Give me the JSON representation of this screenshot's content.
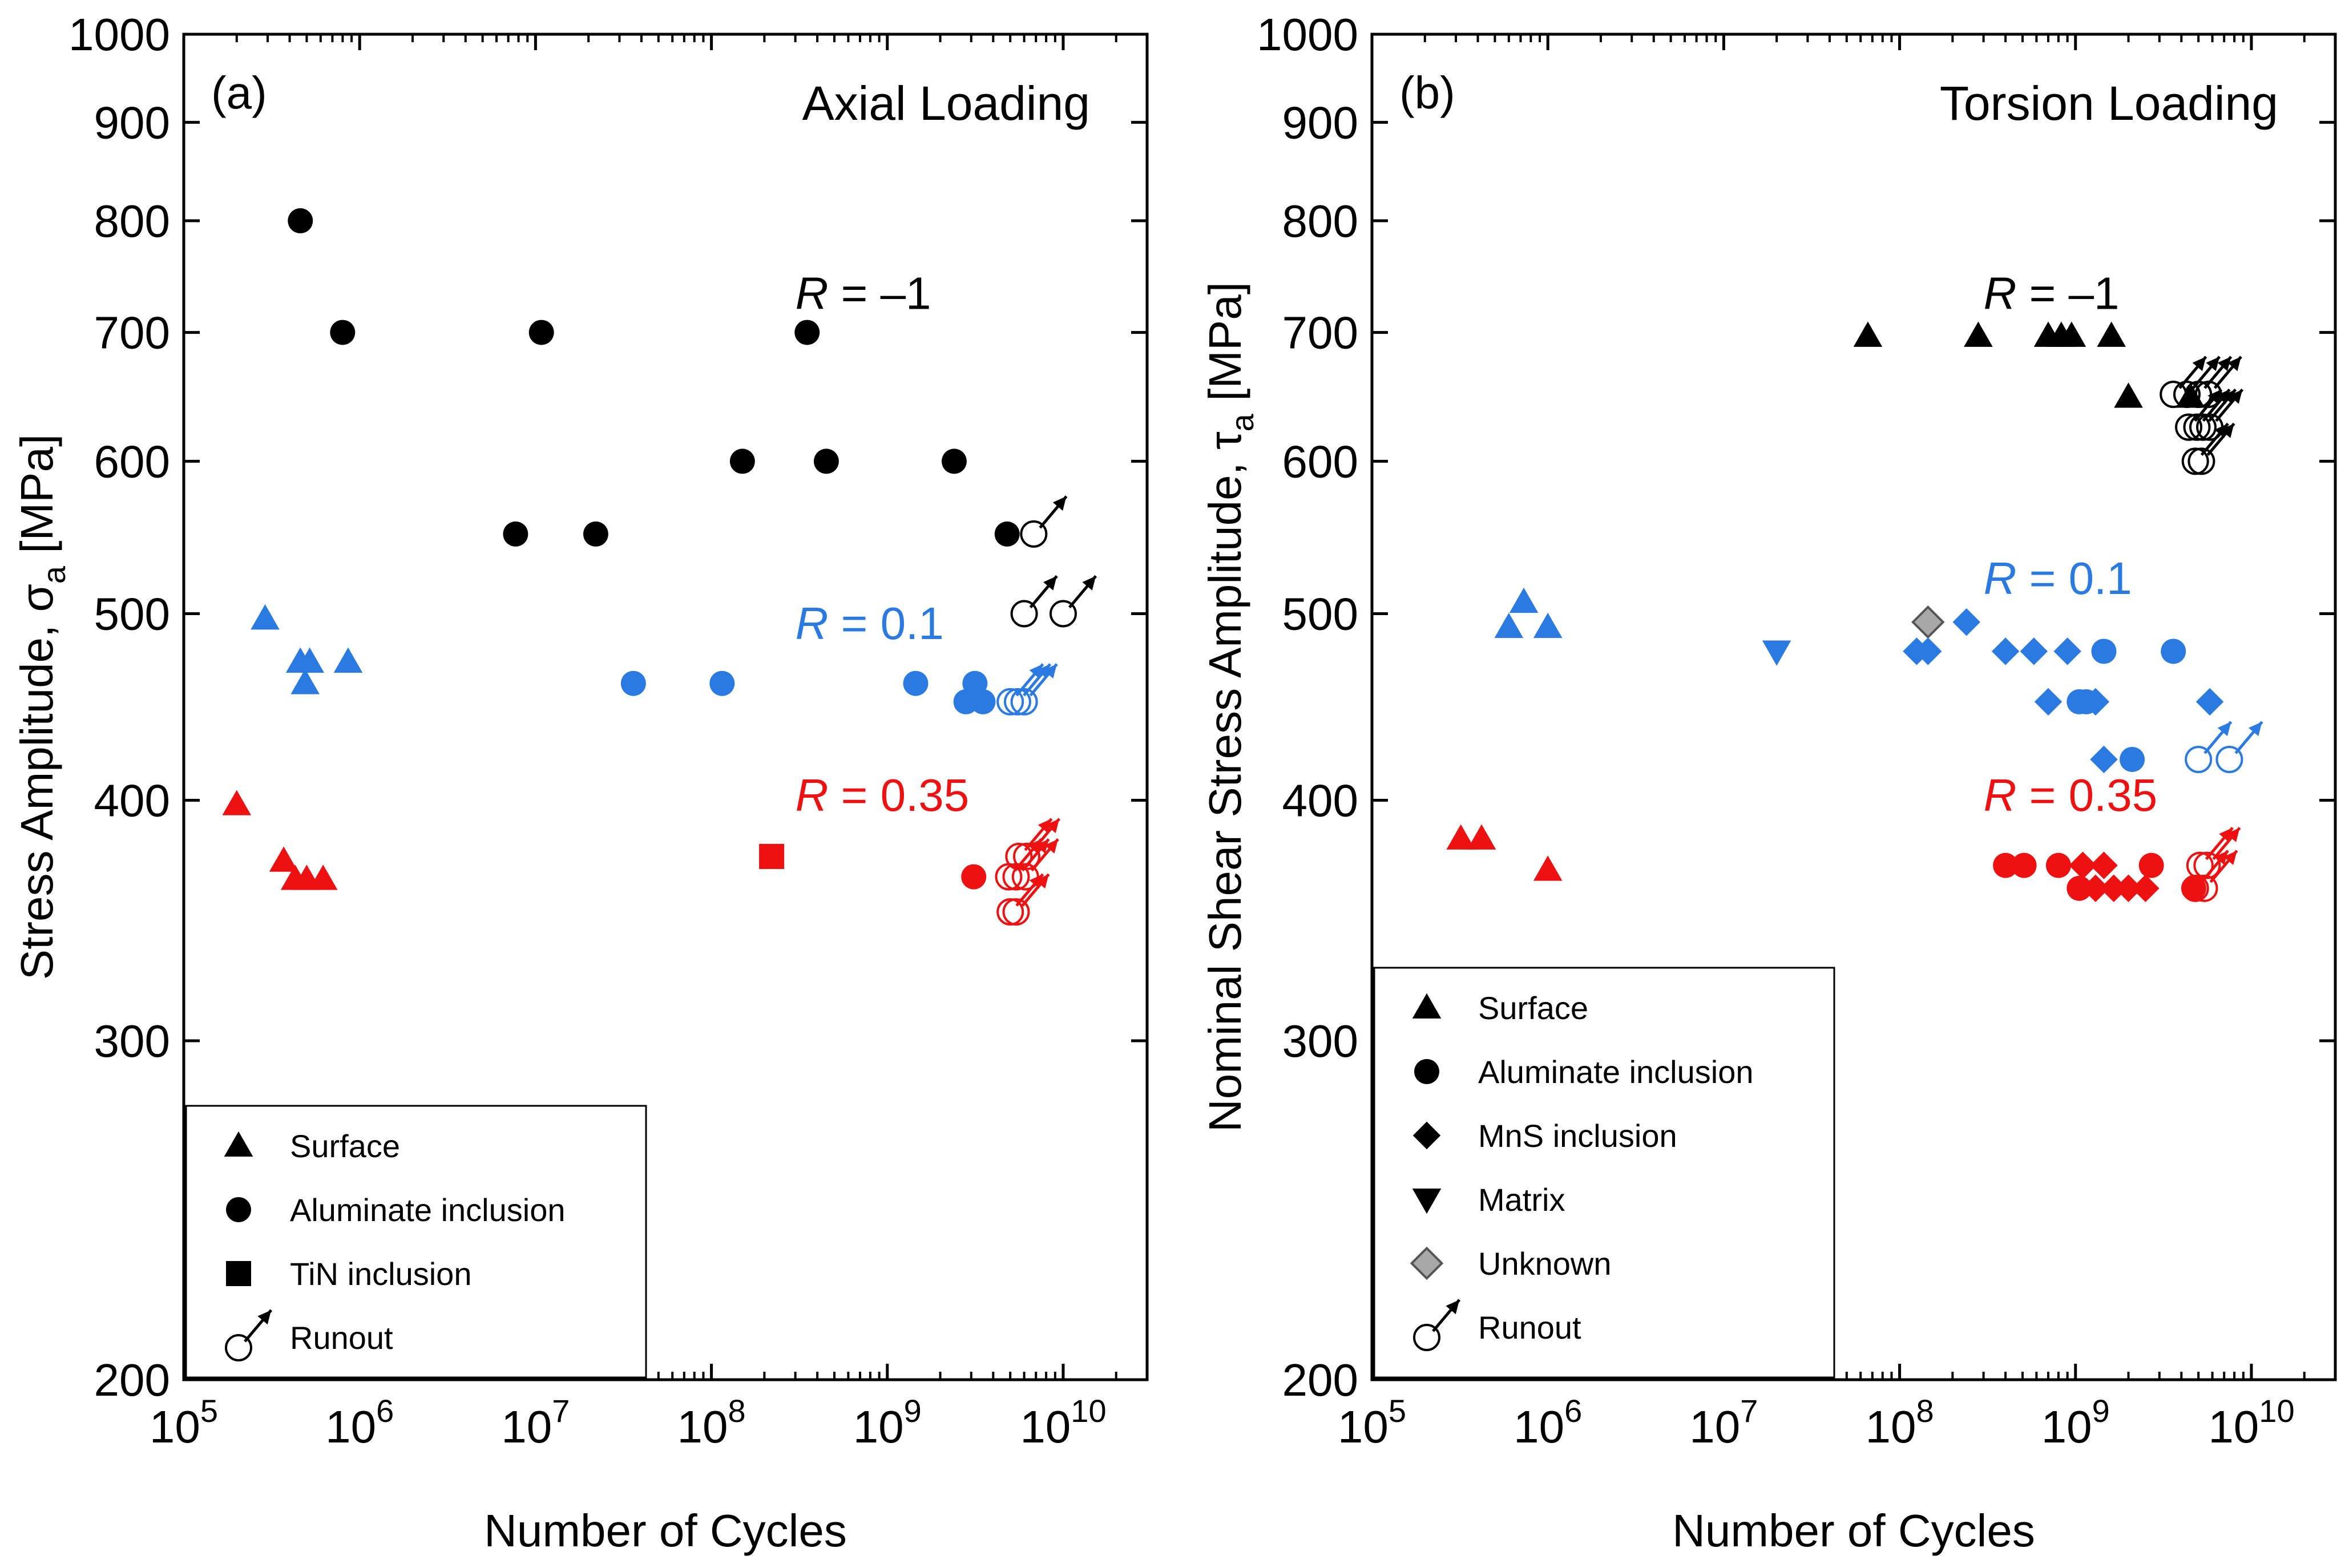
{
  "chart_data": [
    {
      "type": "scatter",
      "panel_label": "(a)",
      "title": "Axial Loading",
      "xlabel": "Number of Cycles",
      "ylabel": "Stress Amplitude, σ",
      "ylabel_sub": "a",
      "ylabel_unit": " [MPa]",
      "xscale": "log",
      "yscale": "log",
      "xlim": [
        100000,
        30000000000
      ],
      "ylim": [
        200,
        1000
      ],
      "x_ticks": [
        {
          "value": 100000,
          "base": "10",
          "exp": "5"
        },
        {
          "value": 1000000,
          "base": "10",
          "exp": "6"
        },
        {
          "value": 10000000,
          "base": "10",
          "exp": "7"
        },
        {
          "value": 100000000,
          "base": "10",
          "exp": "8"
        },
        {
          "value": 1000000000,
          "base": "10",
          "exp": "9"
        },
        {
          "value": 10000000000,
          "base": "10",
          "exp": "10"
        }
      ],
      "y_ticks": [
        {
          "value": 200,
          "label": "200"
        },
        {
          "value": 300,
          "label": "300"
        },
        {
          "value": 400,
          "label": "400"
        },
        {
          "value": 500,
          "label": "500"
        },
        {
          "value": 600,
          "label": "600"
        },
        {
          "value": 700,
          "label": "700"
        },
        {
          "value": 800,
          "label": "800"
        },
        {
          "value": 900,
          "label": "900"
        },
        {
          "value": 1000,
          "label": "1000"
        }
      ],
      "grid": false,
      "legend_position": "bottom-left",
      "legend": [
        {
          "label": "Surface",
          "marker": "triangle"
        },
        {
          "label": "Aluminate inclusion",
          "marker": "circle"
        },
        {
          "label": "TiN inclusion",
          "marker": "square"
        },
        {
          "label": "Runout",
          "marker": "runout"
        }
      ],
      "annotations": [
        {
          "italic": "R",
          "text": " = –1",
          "color": "#000000",
          "x": 300000000.0,
          "y": 720
        },
        {
          "italic": "R",
          "text": " = 0.1",
          "color": "#2a7ae2",
          "x": 300000000.0,
          "y": 485
        },
        {
          "italic": "R",
          "text": " = 0.35",
          "color": "#ee1111",
          "x": 300000000.0,
          "y": 395
        }
      ],
      "series": [
        {
          "name": "R = -1 Aluminate inclusion",
          "color": "#000000",
          "marker": "circle",
          "points": [
            [
              460000.0,
              800
            ],
            [
              800000.0,
              700
            ],
            [
              10800000.0,
              700
            ],
            [
              350000000.0,
              700
            ],
            [
              150000000.0,
              600
            ],
            [
              450000000.0,
              600
            ],
            [
              2400000000.0,
              600
            ],
            [
              7700000.0,
              550
            ],
            [
              22000000.0,
              550
            ],
            [
              4800000000.0,
              550
            ]
          ]
        },
        {
          "name": "R = -1 Runout",
          "color": "#000000",
          "marker": "runout",
          "points": [
            [
              6800000000.0,
              550
            ],
            [
              6000000000.0,
              500
            ],
            [
              10000000000.0,
              500
            ]
          ]
        },
        {
          "name": "R = 0.1 Surface",
          "color": "#2a7ae2",
          "marker": "triangle",
          "points": [
            [
              290000.0,
              497
            ],
            [
              460000.0,
              472
            ],
            [
              520000.0,
              472
            ],
            [
              860000.0,
              472
            ],
            [
              490000.0,
              460
            ]
          ]
        },
        {
          "name": "R = 0.1 Aluminate inclusion",
          "color": "#2a7ae2",
          "marker": "circle",
          "points": [
            [
              36000000.0,
              460
            ],
            [
              115000000.0,
              460
            ],
            [
              1450000000.0,
              460
            ],
            [
              3150000000.0,
              460
            ],
            [
              2800000000.0,
              450
            ],
            [
              3500000000.0,
              450
            ]
          ]
        },
        {
          "name": "R = 0.1 Runout",
          "color": "#2a7ae2",
          "marker": "runout",
          "points": [
            [
              5000000000.0,
              450
            ],
            [
              5500000000.0,
              450
            ],
            [
              6000000000.0,
              450
            ]
          ]
        },
        {
          "name": "R = 0.35 Surface",
          "color": "#ee1111",
          "marker": "triangle",
          "points": [
            [
              200000.0,
              398
            ],
            [
              370000.0,
              372
            ],
            [
              430000.0,
              364
            ],
            [
              500000.0,
              364
            ],
            [
              620000.0,
              364
            ]
          ]
        },
        {
          "name": "R = 0.35 TiN inclusion",
          "color": "#ee1111",
          "marker": "square",
          "points": [
            [
              220000000.0,
              374
            ]
          ]
        },
        {
          "name": "R = 0.35 Aluminate inclusion",
          "color": "#ee1111",
          "marker": "circle",
          "points": [
            [
              3100000000.0,
              365
            ]
          ]
        },
        {
          "name": "R = 0.35 Runout",
          "color": "#ee1111",
          "marker": "runout",
          "points": [
            [
              5600000000.0,
              374
            ],
            [
              6200000000.0,
              374
            ],
            [
              4900000000.0,
              365
            ],
            [
              5400000000.0,
              365
            ],
            [
              6100000000.0,
              365
            ],
            [
              5000000000.0,
              350
            ],
            [
              5400000000.0,
              350
            ]
          ]
        }
      ]
    },
    {
      "type": "scatter",
      "panel_label": "(b)",
      "title": "Torsion Loading",
      "xlabel": "Number of Cycles",
      "ylabel": "Nominal Shear Stress Amplitude, τ",
      "ylabel_sub": "a",
      "ylabel_unit": " [MPa]",
      "xscale": "log",
      "yscale": "log",
      "xlim": [
        100000,
        30000000000
      ],
      "ylim": [
        200,
        1000
      ],
      "x_ticks": [
        {
          "value": 100000,
          "base": "10",
          "exp": "5"
        },
        {
          "value": 1000000,
          "base": "10",
          "exp": "6"
        },
        {
          "value": 10000000,
          "base": "10",
          "exp": "7"
        },
        {
          "value": 100000000,
          "base": "10",
          "exp": "8"
        },
        {
          "value": 1000000000,
          "base": "10",
          "exp": "9"
        },
        {
          "value": 10000000000,
          "base": "10",
          "exp": "10"
        }
      ],
      "y_ticks": [
        {
          "value": 200,
          "label": "200"
        },
        {
          "value": 300,
          "label": "300"
        },
        {
          "value": 400,
          "label": "400"
        },
        {
          "value": 500,
          "label": "500"
        },
        {
          "value": 600,
          "label": "600"
        },
        {
          "value": 700,
          "label": "700"
        },
        {
          "value": 800,
          "label": "800"
        },
        {
          "value": 900,
          "label": "900"
        },
        {
          "value": 1000,
          "label": "1000"
        }
      ],
      "grid": false,
      "legend_position": "bottom-left",
      "legend": [
        {
          "label": "Surface",
          "marker": "triangle"
        },
        {
          "label": "Aluminate inclusion",
          "marker": "circle"
        },
        {
          "label": "MnS inclusion",
          "marker": "diamond"
        },
        {
          "label": "Matrix",
          "marker": "triangle-down"
        },
        {
          "label": "Unknown",
          "marker": "diamond-gray"
        },
        {
          "label": "Runout",
          "marker": "runout"
        }
      ],
      "annotations": [
        {
          "italic": "R",
          "text": " = –1",
          "color": "#000000",
          "x": 300000000.0,
          "y": 720
        },
        {
          "italic": "R",
          "text": " = 0.1",
          "color": "#2a7ae2",
          "x": 300000000.0,
          "y": 512
        },
        {
          "italic": "R",
          "text": " = 0.35",
          "color": "#ee1111",
          "x": 300000000.0,
          "y": 395
        }
      ],
      "series": [
        {
          "name": "R = -1 Surface",
          "color": "#000000",
          "marker": "triangle",
          "points": [
            [
              66000000.0,
              697
            ],
            [
              280000000.0,
              697
            ],
            [
              700000000.0,
              697
            ],
            [
              830000000.0,
              697
            ],
            [
              950000000.0,
              697
            ],
            [
              1600000000.0,
              697
            ],
            [
              2000000000.0,
              648
            ],
            [
              4500000000.0,
              648
            ]
          ]
        },
        {
          "name": "R = -1 Runout",
          "color": "#000000",
          "marker": "runout",
          "points": [
            [
              3600000000.0,
              650
            ],
            [
              4300000000.0,
              650
            ],
            [
              5000000000.0,
              650
            ],
            [
              5700000000.0,
              650
            ],
            [
              4400000000.0,
              625
            ],
            [
              4900000000.0,
              625
            ],
            [
              5300000000.0,
              625
            ],
            [
              5800000000.0,
              625
            ],
            [
              4800000000.0,
              600
            ],
            [
              5200000000.0,
              600
            ]
          ]
        },
        {
          "name": "R = 0.1 Surface",
          "color": "#2a7ae2",
          "marker": "triangle",
          "points": [
            [
              600000.0,
              492
            ],
            [
              730000.0,
              507
            ],
            [
              1000000.0,
              492
            ]
          ]
        },
        {
          "name": "R = 0.1 Matrix",
          "color": "#2a7ae2",
          "marker": "triangle-down",
          "points": [
            [
              20000000.0,
              478
            ]
          ]
        },
        {
          "name": "R = 0.1 Unknown",
          "color": "#a8a8a8",
          "marker": "diamond-gray",
          "points": [
            [
              145000000.0,
              495
            ]
          ]
        },
        {
          "name": "R = 0.1 MnS inclusion",
          "color": "#2a7ae2",
          "marker": "diamond",
          "points": [
            [
              125000000.0,
              478
            ],
            [
              145000000.0,
              478
            ],
            [
              240000000.0,
              495
            ],
            [
              400000000.0,
              478
            ],
            [
              580000000.0,
              478
            ],
            [
              900000000.0,
              478
            ],
            [
              700000000.0,
              450
            ],
            [
              1300000000.0,
              450
            ],
            [
              1450000000.0,
              420
            ],
            [
              5800000000.0,
              450
            ]
          ]
        },
        {
          "name": "R = 0.1 Aluminate inclusion",
          "color": "#2a7ae2",
          "marker": "circle",
          "points": [
            [
              1450000000.0,
              478
            ],
            [
              3600000000.0,
              478
            ],
            [
              1050000000.0,
              450
            ],
            [
              1150000000.0,
              450
            ],
            [
              2100000000.0,
              420
            ]
          ]
        },
        {
          "name": "R = 0.1 Runout",
          "color": "#2a7ae2",
          "marker": "runout",
          "points": [
            [
              5000000000.0,
              420
            ],
            [
              7500000000.0,
              420
            ]
          ]
        },
        {
          "name": "R = 0.35 Surface",
          "color": "#ee1111",
          "marker": "triangle",
          "points": [
            [
              320000.0,
              382
            ],
            [
              420000.0,
              382
            ],
            [
              1000000.0,
              368
            ]
          ]
        },
        {
          "name": "R = 0.35 Aluminate inclusion",
          "color": "#ee1111",
          "marker": "circle",
          "points": [
            [
              400000000.0,
              370
            ],
            [
              510000000.0,
              370
            ],
            [
              800000000.0,
              370
            ],
            [
              1050000000.0,
              360
            ],
            [
              2700000000.0,
              370
            ],
            [
              4700000000.0,
              360
            ]
          ]
        },
        {
          "name": "R = 0.35 MnS inclusion",
          "color": "#ee1111",
          "marker": "diamond",
          "points": [
            [
              1100000000.0,
              370
            ],
            [
              1450000000.0,
              370
            ],
            [
              1300000000.0,
              360
            ],
            [
              1650000000.0,
              360
            ],
            [
              2000000000.0,
              360
            ],
            [
              2500000000.0,
              360
            ]
          ]
        },
        {
          "name": "R = 0.35 Runout",
          "color": "#ee1111",
          "marker": "runout",
          "points": [
            [
              5100000000.0,
              370
            ],
            [
              5600000000.0,
              370
            ],
            [
              4800000000.0,
              360
            ],
            [
              5400000000.0,
              360
            ]
          ]
        }
      ]
    }
  ]
}
